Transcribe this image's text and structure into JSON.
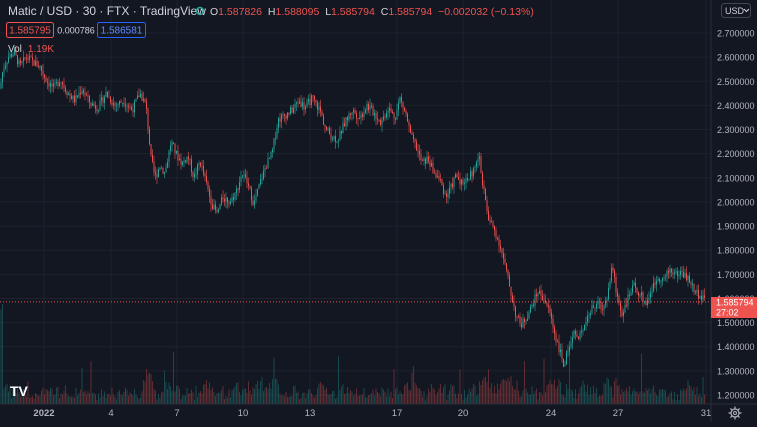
{
  "header": {
    "symbol": "Matic / USD",
    "interval": "30",
    "exchange": "FTX",
    "source": "TradingView",
    "ohlc": {
      "o_label": "O",
      "o": "1.587826",
      "h_label": "H",
      "h": "1.588095",
      "l_label": "L",
      "l": "1.585794",
      "c_label": "C",
      "c": "1.585794",
      "change": "−0.002032 (−0.13%)"
    },
    "sell_price": "1.585795",
    "spread": "0.000786",
    "buy_price": "1.586581"
  },
  "volume": {
    "label": "Vol",
    "value": "1.19K"
  },
  "currency_button": "USD",
  "price_badge": {
    "price": "1.585794",
    "countdown": "27:02"
  },
  "colors": {
    "background": "#131722",
    "up": "#26a69a",
    "down": "#ef5350",
    "text": "#d1d4dc",
    "axis_text": "#b2b5be",
    "grid": "#1e222d",
    "buy": "#2962ff"
  },
  "logo": "TV",
  "icons": {
    "status": "status-dot-icon",
    "settings": "settings-gear-icon",
    "currency": "chevron-down-icon"
  },
  "chart_data": {
    "type": "candlestick",
    "symbol": "Matic / USD",
    "interval_minutes": 30,
    "y_ticks": [
      "2.700000",
      "2.600000",
      "2.500000",
      "2.400000",
      "2.300000",
      "2.200000",
      "2.100000",
      "2.000000",
      "1.900000",
      "1.800000",
      "1.700000",
      "1.600000",
      "1.500000",
      "1.400000",
      "1.300000",
      "1.200000"
    ],
    "x_ticks": [
      "2022",
      "4",
      "7",
      "10",
      "13",
      "17",
      "20",
      "24",
      "27",
      "31"
    ],
    "ylim": [
      1.2,
      2.7
    ],
    "close_path": [
      {
        "t": 0,
        "p": 2.47
      },
      {
        "t": 3,
        "p": 2.55
      },
      {
        "t": 8,
        "p": 2.6
      },
      {
        "t": 14,
        "p": 2.62
      },
      {
        "t": 20,
        "p": 2.56
      },
      {
        "t": 26,
        "p": 2.6
      },
      {
        "t": 33,
        "p": 2.58
      },
      {
        "t": 40,
        "p": 2.56
      },
      {
        "t": 47,
        "p": 2.5
      },
      {
        "t": 54,
        "p": 2.47
      },
      {
        "t": 60,
        "p": 2.51
      },
      {
        "t": 68,
        "p": 2.45
      },
      {
        "t": 75,
        "p": 2.42
      },
      {
        "t": 82,
        "p": 2.47
      },
      {
        "t": 90,
        "p": 2.41
      },
      {
        "t": 98,
        "p": 2.39
      },
      {
        "t": 106,
        "p": 2.45
      },
      {
        "t": 115,
        "p": 2.4
      },
      {
        "t": 124,
        "p": 2.42
      },
      {
        "t": 132,
        "p": 2.38
      },
      {
        "t": 140,
        "p": 2.45
      },
      {
        "t": 146,
        "p": 2.4
      },
      {
        "t": 151,
        "p": 2.18
      },
      {
        "t": 155,
        "p": 2.1
      },
      {
        "t": 160,
        "p": 2.15
      },
      {
        "t": 165,
        "p": 2.12
      },
      {
        "t": 171,
        "p": 2.25
      },
      {
        "t": 176,
        "p": 2.2
      },
      {
        "t": 182,
        "p": 2.16
      },
      {
        "t": 188,
        "p": 2.19
      },
      {
        "t": 194,
        "p": 2.1
      },
      {
        "t": 200,
        "p": 2.17
      },
      {
        "t": 206,
        "p": 2.08
      },
      {
        "t": 212,
        "p": 1.99
      },
      {
        "t": 217,
        "p": 1.95
      },
      {
        "t": 223,
        "p": 2.02
      },
      {
        "t": 230,
        "p": 2.0
      },
      {
        "t": 236,
        "p": 2.04
      },
      {
        "t": 242,
        "p": 2.12
      },
      {
        "t": 248,
        "p": 2.07
      },
      {
        "t": 254,
        "p": 1.99
      },
      {
        "t": 260,
        "p": 2.08
      },
      {
        "t": 266,
        "p": 2.15
      },
      {
        "t": 272,
        "p": 2.2
      },
      {
        "t": 278,
        "p": 2.34
      },
      {
        "t": 285,
        "p": 2.36
      },
      {
        "t": 292,
        "p": 2.38
      },
      {
        "t": 299,
        "p": 2.42
      },
      {
        "t": 305,
        "p": 2.39
      },
      {
        "t": 312,
        "p": 2.43
      },
      {
        "t": 320,
        "p": 2.38
      },
      {
        "t": 326,
        "p": 2.3
      },
      {
        "t": 332,
        "p": 2.27
      },
      {
        "t": 338,
        "p": 2.26
      },
      {
        "t": 345,
        "p": 2.33
      },
      {
        "t": 352,
        "p": 2.38
      },
      {
        "t": 360,
        "p": 2.35
      },
      {
        "t": 367,
        "p": 2.4
      },
      {
        "t": 374,
        "p": 2.37
      },
      {
        "t": 381,
        "p": 2.33
      },
      {
        "t": 388,
        "p": 2.39
      },
      {
        "t": 395,
        "p": 2.35
      },
      {
        "t": 400,
        "p": 2.43
      },
      {
        "t": 406,
        "p": 2.36
      },
      {
        "t": 411,
        "p": 2.27
      },
      {
        "t": 416,
        "p": 2.23
      },
      {
        "t": 422,
        "p": 2.16
      },
      {
        "t": 428,
        "p": 2.18
      },
      {
        "t": 434,
        "p": 2.12
      },
      {
        "t": 440,
        "p": 2.09
      },
      {
        "t": 446,
        "p": 2.02
      },
      {
        "t": 451,
        "p": 2.06
      },
      {
        "t": 456,
        "p": 2.11
      },
      {
        "t": 462,
        "p": 2.08
      },
      {
        "t": 468,
        "p": 2.1
      },
      {
        "t": 474,
        "p": 2.13
      },
      {
        "t": 479,
        "p": 2.19
      },
      {
        "t": 483,
        "p": 2.07
      },
      {
        "t": 488,
        "p": 1.93
      },
      {
        "t": 494,
        "p": 1.89
      },
      {
        "t": 500,
        "p": 1.82
      },
      {
        "t": 506,
        "p": 1.72
      },
      {
        "t": 511,
        "p": 1.62
      },
      {
        "t": 516,
        "p": 1.53
      },
      {
        "t": 521,
        "p": 1.49
      },
      {
        "t": 526,
        "p": 1.52
      },
      {
        "t": 532,
        "p": 1.57
      },
      {
        "t": 538,
        "p": 1.63
      },
      {
        "t": 544,
        "p": 1.6
      },
      {
        "t": 550,
        "p": 1.54
      },
      {
        "t": 555,
        "p": 1.45
      },
      {
        "t": 560,
        "p": 1.38
      },
      {
        "t": 564,
        "p": 1.32
      },
      {
        "t": 568,
        "p": 1.39
      },
      {
        "t": 573,
        "p": 1.46
      },
      {
        "t": 579,
        "p": 1.43
      },
      {
        "t": 585,
        "p": 1.51
      },
      {
        "t": 591,
        "p": 1.55
      },
      {
        "t": 597,
        "p": 1.58
      },
      {
        "t": 603,
        "p": 1.56
      },
      {
        "t": 608,
        "p": 1.62
      },
      {
        "t": 612,
        "p": 1.74
      },
      {
        "t": 617,
        "p": 1.61
      },
      {
        "t": 622,
        "p": 1.54
      },
      {
        "t": 628,
        "p": 1.6
      },
      {
        "t": 634,
        "p": 1.65
      },
      {
        "t": 640,
        "p": 1.62
      },
      {
        "t": 646,
        "p": 1.58
      },
      {
        "t": 652,
        "p": 1.64
      },
      {
        "t": 658,
        "p": 1.69
      },
      {
        "t": 664,
        "p": 1.68
      },
      {
        "t": 670,
        "p": 1.72
      },
      {
        "t": 676,
        "p": 1.7
      },
      {
        "t": 682,
        "p": 1.71
      },
      {
        "t": 688,
        "p": 1.68
      },
      {
        "t": 694,
        "p": 1.64
      },
      {
        "t": 700,
        "p": 1.61
      },
      {
        "t": 705,
        "p": 1.5858
      }
    ]
  }
}
